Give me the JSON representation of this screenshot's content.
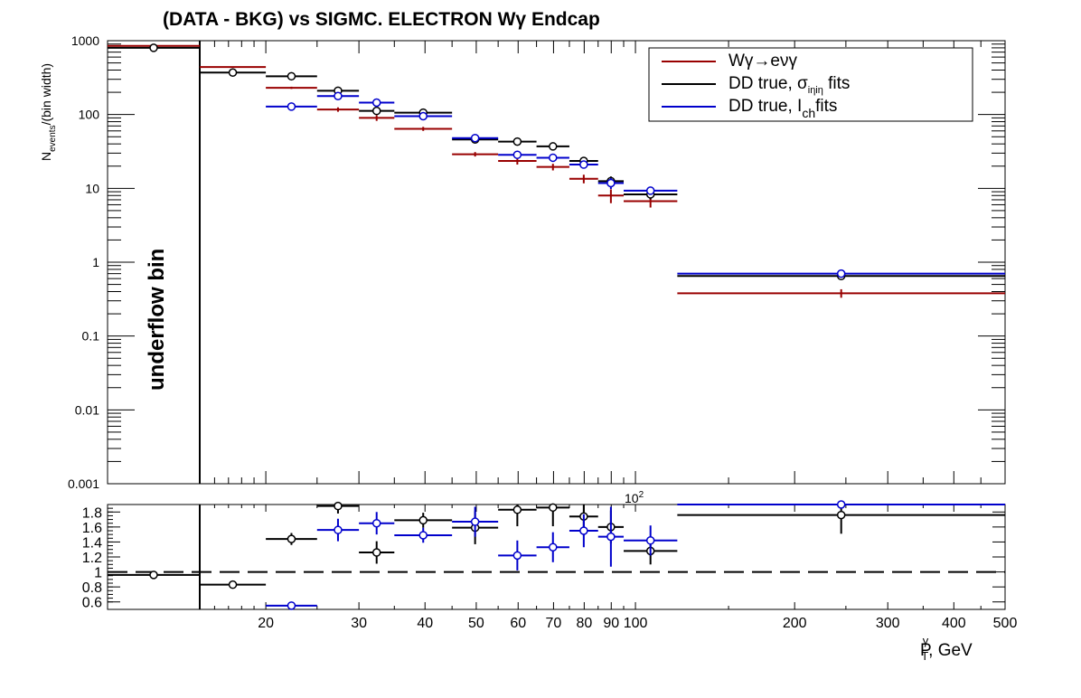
{
  "chart_data": {
    "type": "scatter",
    "title": "(DATA - BKG) vs SIGMC. ELECTRON Wγ  Endcap",
    "x_axis": {
      "label_main": "P",
      "label_sup": "γ",
      "label_sub": "T",
      "label_tail": ", GeV",
      "scale": "log",
      "range": [
        10,
        500
      ],
      "tick_labels": [
        "20",
        "30",
        "40",
        "50",
        "60",
        "70",
        "80",
        "90",
        "100",
        "200",
        "300",
        "400",
        "500"
      ],
      "exponent_label": "10",
      "exponent_sup": "2"
    },
    "y_axis_main": {
      "label_main": "N",
      "label_sub": "events",
      "label_tail": "/(bin width)",
      "scale": "log",
      "range": [
        0.001,
        1000
      ],
      "tick_labels": [
        "0.001",
        "0.01",
        "0.1",
        "1",
        "10",
        "100",
        "1000"
      ]
    },
    "y_axis_ratio": {
      "range": [
        0.5,
        1.9
      ],
      "tick_labels": [
        "0.6",
        "0.8",
        "1",
        "1.2",
        "1.4",
        "1.6",
        "1.8"
      ],
      "reference_line": 1
    },
    "underflow": {
      "x_min": 10,
      "x_max": 15,
      "label": "underflow bin"
    },
    "grid": false,
    "legend": {
      "position": "top-right",
      "entries": [
        {
          "text": "Wγ→eνγ",
          "color": "#990000"
        },
        {
          "text_main": "DD true,  σ",
          "text_sub": "iηiη",
          "text_tail": " fits",
          "color": "#000000"
        },
        {
          "text_main": "DD true, I",
          "text_sub": "ch",
          "text_tail": "fits",
          "color": "#0000cc"
        }
      ]
    },
    "series": [
      {
        "name": "Wγ→eνγ",
        "color": "#990000",
        "marker": "none",
        "points": [
          {
            "x0": 10,
            "x1": 15,
            "y": 850,
            "err": 0
          },
          {
            "x0": 15,
            "x1": 20,
            "y": 440,
            "err": 0
          },
          {
            "x0": 20,
            "x1": 25,
            "y": 230,
            "err": 8
          },
          {
            "x0": 25,
            "x1": 30,
            "y": 117,
            "err": 8
          },
          {
            "x0": 30,
            "x1": 35,
            "y": 90,
            "err": 8
          },
          {
            "x0": 35,
            "x1": 45,
            "y": 64,
            "err": 4
          },
          {
            "x0": 45,
            "x1": 55,
            "y": 29,
            "err": 2
          },
          {
            "x0": 55,
            "x1": 65,
            "y": 23.5,
            "err": 2.5
          },
          {
            "x0": 65,
            "x1": 75,
            "y": 19.5,
            "err": 2
          },
          {
            "x0": 75,
            "x1": 85,
            "y": 13.5,
            "err": 1.8
          },
          {
            "x0": 85,
            "x1": 95,
            "y": 8,
            "err": 1.7
          },
          {
            "x0": 95,
            "x1": 120,
            "y": 6.7,
            "err": 1.2
          },
          {
            "x0": 120,
            "x1": 500,
            "y": 0.38,
            "err": 0.05
          }
        ]
      },
      {
        "name": "DD true, σiηiη fits",
        "color": "#000000",
        "marker": "circle",
        "points": [
          {
            "x0": 10,
            "x1": 15,
            "y": 800,
            "err": 40
          },
          {
            "x0": 15,
            "x1": 20,
            "y": 370,
            "err": 20
          },
          {
            "x0": 20,
            "x1": 25,
            "y": 330,
            "err": 20
          },
          {
            "x0": 25,
            "x1": 30,
            "y": 210,
            "err": 15
          },
          {
            "x0": 30,
            "x1": 35,
            "y": 112,
            "err": 10
          },
          {
            "x0": 35,
            "x1": 45,
            "y": 106,
            "err": 7
          },
          {
            "x0": 45,
            "x1": 55,
            "y": 46,
            "err": 3
          },
          {
            "x0": 55,
            "x1": 65,
            "y": 43,
            "err": 3
          },
          {
            "x0": 65,
            "x1": 75,
            "y": 37,
            "err": 3
          },
          {
            "x0": 75,
            "x1": 85,
            "y": 23.5,
            "err": 2
          },
          {
            "x0": 85,
            "x1": 95,
            "y": 12.5,
            "err": 2
          },
          {
            "x0": 95,
            "x1": 120,
            "y": 8.3,
            "err": 1.2
          },
          {
            "x0": 120,
            "x1": 500,
            "y": 0.65,
            "err": 0.06
          }
        ]
      },
      {
        "name": "DD true, Ich fits",
        "color": "#0000cc",
        "marker": "circle",
        "points": [
          {
            "x0": 20,
            "x1": 25,
            "y": 128,
            "err": 15
          },
          {
            "x0": 25,
            "x1": 30,
            "y": 178,
            "err": 15
          },
          {
            "x0": 30,
            "x1": 35,
            "y": 145,
            "err": 12
          },
          {
            "x0": 35,
            "x1": 45,
            "y": 95,
            "err": 7
          },
          {
            "x0": 45,
            "x1": 55,
            "y": 48,
            "err": 4
          },
          {
            "x0": 55,
            "x1": 65,
            "y": 28.5,
            "err": 3
          },
          {
            "x0": 65,
            "x1": 75,
            "y": 26,
            "err": 2.5
          },
          {
            "x0": 75,
            "x1": 85,
            "y": 21,
            "err": 2
          },
          {
            "x0": 85,
            "x1": 95,
            "y": 11.8,
            "err": 2
          },
          {
            "x0": 95,
            "x1": 120,
            "y": 9.3,
            "err": 1
          },
          {
            "x0": 120,
            "x1": 500,
            "y": 0.7,
            "err": 0.05
          }
        ]
      }
    ],
    "ratio_series": [
      {
        "name": "DD true, σiηiη fits / Wγ→eνγ",
        "color": "#000000",
        "points": [
          {
            "x0": 10,
            "x1": 15,
            "y": 0.96,
            "err": 0.02
          },
          {
            "x0": 15,
            "x1": 20,
            "y": 0.83,
            "err": 0.03
          },
          {
            "x0": 20,
            "x1": 25,
            "y": 1.44,
            "err": 0.08
          },
          {
            "x0": 25,
            "x1": 30,
            "y": 1.88,
            "err": 0.1
          },
          {
            "x0": 30,
            "x1": 35,
            "y": 1.26,
            "err": 0.15
          },
          {
            "x0": 35,
            "x1": 45,
            "y": 1.69,
            "err": 0.1
          },
          {
            "x0": 45,
            "x1": 55,
            "y": 1.59,
            "err": 0.22
          },
          {
            "x0": 55,
            "x1": 65,
            "y": 1.83,
            "err": 0.22
          },
          {
            "x0": 65,
            "x1": 75,
            "y": 1.86,
            "err": 0.25
          },
          {
            "x0": 75,
            "x1": 85,
            "y": 1.74,
            "err": 0.22
          },
          {
            "x0": 85,
            "x1": 95,
            "y": 1.6,
            "err": 0.22
          },
          {
            "x0": 95,
            "x1": 120,
            "y": 1.28,
            "err": 0.18
          },
          {
            "x0": 120,
            "x1": 500,
            "y": 1.76,
            "err": 0.25
          }
        ]
      },
      {
        "name": "DD true, Ich fits / Wγ→eνγ",
        "color": "#0000cc",
        "points": [
          {
            "x0": 20,
            "x1": 25,
            "y": 0.55,
            "err": 0.05
          },
          {
            "x0": 25,
            "x1": 30,
            "y": 1.56,
            "err": 0.15
          },
          {
            "x0": 30,
            "x1": 35,
            "y": 1.65,
            "err": 0.15
          },
          {
            "x0": 35,
            "x1": 45,
            "y": 1.49,
            "err": 0.1
          },
          {
            "x0": 45,
            "x1": 55,
            "y": 1.67,
            "err": 0.2
          },
          {
            "x0": 55,
            "x1": 65,
            "y": 1.22,
            "err": 0.2
          },
          {
            "x0": 65,
            "x1": 75,
            "y": 1.33,
            "err": 0.2
          },
          {
            "x0": 75,
            "x1": 85,
            "y": 1.55,
            "err": 0.22
          },
          {
            "x0": 85,
            "x1": 95,
            "y": 1.47,
            "err": 0.4
          },
          {
            "x0": 95,
            "x1": 120,
            "y": 1.42,
            "err": 0.2
          },
          {
            "x0": 120,
            "x1": 500,
            "y": 1.9,
            "err": 0.05
          }
        ]
      }
    ]
  }
}
